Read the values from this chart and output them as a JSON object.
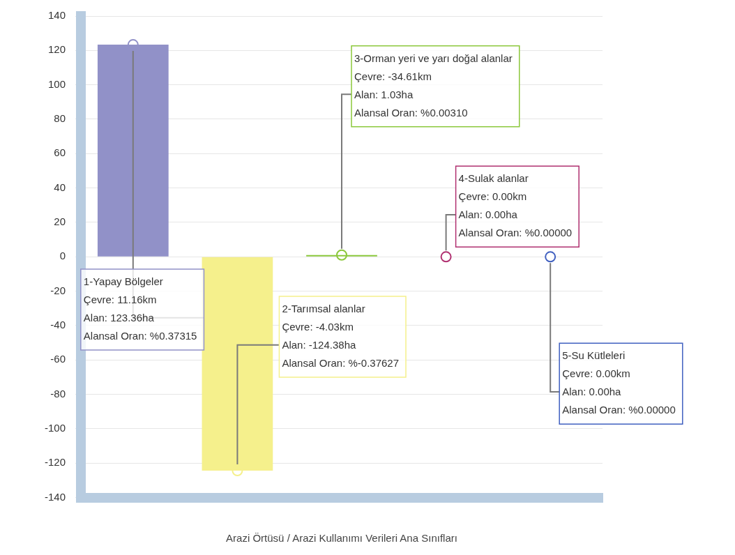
{
  "chart_data": {
    "type": "bar",
    "xlabel": "Arazi Örtüsü / Arazi Kullanımı Verileri Ana Sınıfları",
    "categories": [
      null,
      null,
      null,
      null,
      null
    ],
    "values": [
      123.36,
      -124.38,
      1.03,
      0.0,
      0.0
    ],
    "colors": [
      "#9191c8",
      "#f5f08c",
      "#8cc83c",
      "#b03070",
      "#4060c0"
    ],
    "ylim": [
      -140,
      140
    ],
    "yticks": [
      -140,
      -120,
      -100,
      -80,
      -60,
      -40,
      -20,
      0,
      20,
      40,
      60,
      80,
      100,
      120,
      140
    ],
    "grid": "y",
    "legend": false,
    "annotations": [
      "1-Yapay Bölgeler\nÇevre: 11.16km\nAlan: 123.36ha\nAlansal Oran: %0.37315",
      "2-Tarımsal alanlar\nÇevre: -4.03km\nAlan: -124.38ha\nAlansal Oran: %-0.37627",
      "3-Orman yeri ve yarı doğal alanlar\nÇevre: -34.61km\nAlan: 1.03ha\nAlansal Oran: %0.00310",
      "4-Sulak alanlar\nÇevre: 0.00km\nAlan: 0.00ha\nAlansal Oran: %0.00000",
      "5-Su Kütleleri\nÇevre: 0.00km\nAlan: 0.00ha\nAlansal Oran: %0.00000"
    ]
  }
}
